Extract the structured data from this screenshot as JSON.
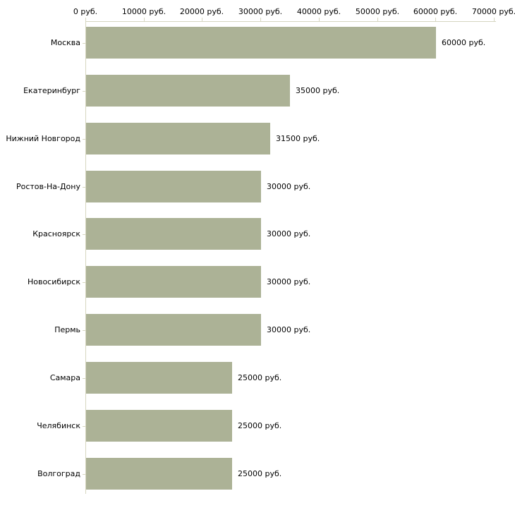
{
  "chart_data": {
    "type": "bar",
    "orientation": "horizontal",
    "title": "",
    "categories": [
      "Москва",
      "Екатеринбург",
      "Нижний Новгород",
      "Ростов-На-Дону",
      "Красноярск",
      "Новосибирск",
      "Пермь",
      "Самара",
      "Челябинск",
      "Волгоград"
    ],
    "values": [
      60000,
      35000,
      31500,
      30000,
      30000,
      30000,
      30000,
      25000,
      25000,
      25000
    ],
    "value_labels": [
      "60000 руб.",
      "35000 руб.",
      "31500 руб.",
      "30000 руб.",
      "30000 руб.",
      "30000 руб.",
      "30000 руб.",
      "25000 руб.",
      "25000 руб.",
      "25000 руб."
    ],
    "x_ticks": [
      0,
      10000,
      20000,
      30000,
      40000,
      50000,
      60000,
      70000
    ],
    "x_tick_labels": [
      "0 руб.",
      "10000 руб.",
      "20000 руб.",
      "30000 руб.",
      "40000 руб.",
      "50000 руб.",
      "60000 руб.",
      "70000 руб."
    ],
    "xlim": [
      0,
      70000
    ],
    "unit": "руб.",
    "grid": false,
    "legend": false,
    "colors": {
      "bar": "#acb296",
      "axis": "#d6d6c0",
      "text": "#000000",
      "background": "#ffffff"
    }
  }
}
